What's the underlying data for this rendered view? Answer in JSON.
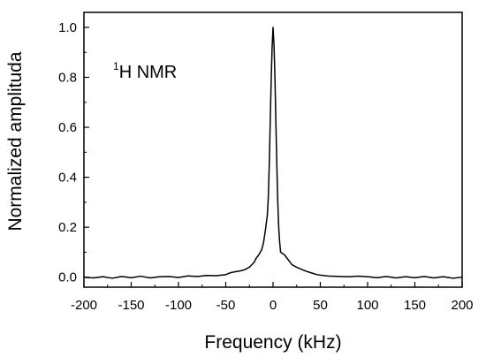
{
  "chart_data": {
    "type": "line",
    "xlabel": "Frequency (kHz)",
    "ylabel": "Normalized amplituda",
    "annotation": {
      "superscript": "1",
      "text": "H NMR"
    },
    "xlim": [
      -200,
      200
    ],
    "ylim": [
      -0.04,
      1.06
    ],
    "xticks": [
      -200,
      -150,
      -100,
      -50,
      0,
      50,
      100,
      150,
      200
    ],
    "xtick_labels": [
      "-200",
      "-150",
      "-100",
      "-50",
      "0",
      "50",
      "100",
      "150",
      "200"
    ],
    "yticks": [
      0.0,
      0.2,
      0.4,
      0.6,
      0.8,
      1.0
    ],
    "ytick_labels": [
      "0.0",
      "0.2",
      "0.4",
      "0.6",
      "0.8",
      "1.0"
    ],
    "grid": false,
    "series": [
      {
        "color": "#000000",
        "x": [
          -200,
          -190,
          -180,
          -170,
          -160,
          -150,
          -140,
          -130,
          -120,
          -110,
          -100,
          -90,
          -80,
          -70,
          -60,
          -50,
          -45,
          -40,
          -35,
          -30,
          -25,
          -20,
          -18,
          -15,
          -12,
          -10,
          -8,
          -6,
          -5,
          -4,
          -3,
          -2,
          -1,
          0,
          1,
          2,
          3,
          4,
          5,
          6,
          7,
          8,
          10,
          12,
          15,
          18,
          20,
          25,
          30,
          35,
          40,
          45,
          50,
          60,
          70,
          80,
          90,
          100,
          110,
          120,
          130,
          140,
          150,
          160,
          170,
          180,
          190,
          200
        ],
        "y": [
          0.0,
          -0.003,
          0.002,
          -0.004,
          0.003,
          -0.002,
          0.004,
          -0.003,
          0.002,
          0.003,
          -0.001,
          0.005,
          0.003,
          0.007,
          0.006,
          0.01,
          0.018,
          0.022,
          0.025,
          0.03,
          0.04,
          0.06,
          0.075,
          0.09,
          0.11,
          0.14,
          0.19,
          0.25,
          0.32,
          0.45,
          0.62,
          0.78,
          0.92,
          1.0,
          0.93,
          0.8,
          0.62,
          0.45,
          0.3,
          0.2,
          0.14,
          0.1,
          0.095,
          0.09,
          0.075,
          0.06,
          0.05,
          0.04,
          0.032,
          0.024,
          0.018,
          0.012,
          0.008,
          0.004,
          0.003,
          0.002,
          0.004,
          0.002,
          -0.002,
          0.003,
          -0.003,
          0.002,
          -0.002,
          0.003,
          -0.003,
          0.002,
          -0.004,
          0.0
        ]
      }
    ]
  }
}
